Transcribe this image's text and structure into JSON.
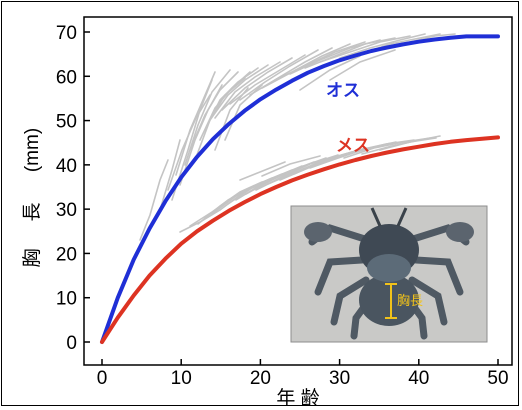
{
  "chart_data": {
    "type": "line",
    "xlabel": "年 齢",
    "ylabel": "胸 長 (mm)",
    "ylabel_parts": [
      "胸",
      "長",
      "(mm)"
    ],
    "xlim": [
      -2,
      52
    ],
    "ylim": [
      -2,
      72
    ],
    "x_ticks": [
      0,
      10,
      20,
      30,
      40,
      50
    ],
    "y_ticks": [
      0,
      10,
      20,
      30,
      40,
      50,
      60,
      70
    ],
    "grid": false,
    "series": [
      {
        "name": "オス",
        "color": "#1f2fd6",
        "x": [
          0,
          2,
          4,
          6,
          8,
          10,
          12,
          14,
          16,
          18,
          20,
          22,
          24,
          26,
          28,
          30,
          32,
          34,
          36,
          38,
          40,
          42,
          44,
          46,
          48,
          50
        ],
        "y": [
          0,
          10.0,
          18.6,
          25.6,
          31.8,
          37.2,
          41.8,
          45.8,
          49.2,
          52.2,
          54.8,
          57.0,
          59.0,
          60.8,
          62.3,
          63.6,
          64.7,
          65.7,
          66.5,
          67.2,
          67.8,
          68.3,
          68.7,
          69.0,
          69.0,
          69.0
        ]
      },
      {
        "name": "メス",
        "color": "#dd3322",
        "x": [
          0,
          2,
          4,
          6,
          8,
          10,
          12,
          14,
          16,
          18,
          20,
          22,
          24,
          26,
          28,
          30,
          32,
          34,
          36,
          38,
          40,
          42,
          44,
          46,
          48,
          50
        ],
        "y": [
          0,
          5.5,
          10.5,
          15.0,
          18.8,
          22.2,
          25.0,
          27.4,
          29.6,
          31.6,
          33.4,
          35.0,
          36.5,
          37.8,
          39.0,
          40.1,
          41.1,
          42.0,
          42.8,
          43.5,
          44.1,
          44.7,
          45.2,
          45.6,
          45.9,
          46.2
        ]
      }
    ],
    "annotations": [
      {
        "text": "オス",
        "color": "#1f2fd6"
      },
      {
        "text": "メス",
        "color": "#dd3322"
      }
    ],
    "inset": {
      "label": "胸長"
    }
  }
}
